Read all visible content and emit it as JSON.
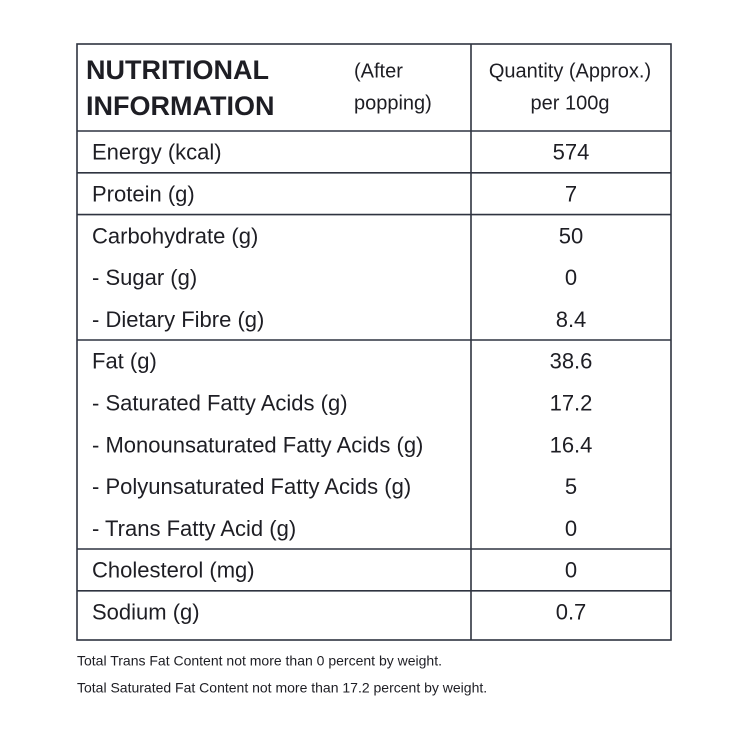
{
  "header": {
    "title_lines": [
      "NUTRITIONAL",
      "INFORMATION"
    ],
    "note_lines": [
      "(After",
      "popping)"
    ],
    "quantity_lines": [
      "Quantity (Approx.)",
      "per 100g"
    ]
  },
  "table": {
    "groups": [
      [
        [
          "Energy (kcal)",
          "574"
        ]
      ],
      [
        [
          "Protein (g)",
          "7"
        ]
      ],
      [
        [
          "Carbohydrate (g)",
          "50"
        ],
        [
          "- Sugar (g)",
          "0"
        ],
        [
          "- Dietary Fibre (g)",
          "8.4"
        ]
      ],
      [
        [
          "Fat (g)",
          "38.6"
        ],
        [
          "- Saturated Fatty Acids (g)",
          "17.2"
        ],
        [
          "- Monounsaturated Fatty Acids (g)",
          "16.4"
        ],
        [
          "- Polyunsaturated Fatty Acids (g)",
          "5"
        ],
        [
          "- Trans Fatty Acid (g)",
          "0"
        ]
      ],
      [
        [
          "Cholesterol (mg)",
          "0"
        ]
      ],
      [
        [
          "Sodium (g)",
          "0.7"
        ]
      ]
    ]
  },
  "footnotes": [
    "Total Trans Fat Content not more than 0 percent by weight.",
    "Total Saturated Fat Content not more than 17.2 percent by weight."
  ]
}
